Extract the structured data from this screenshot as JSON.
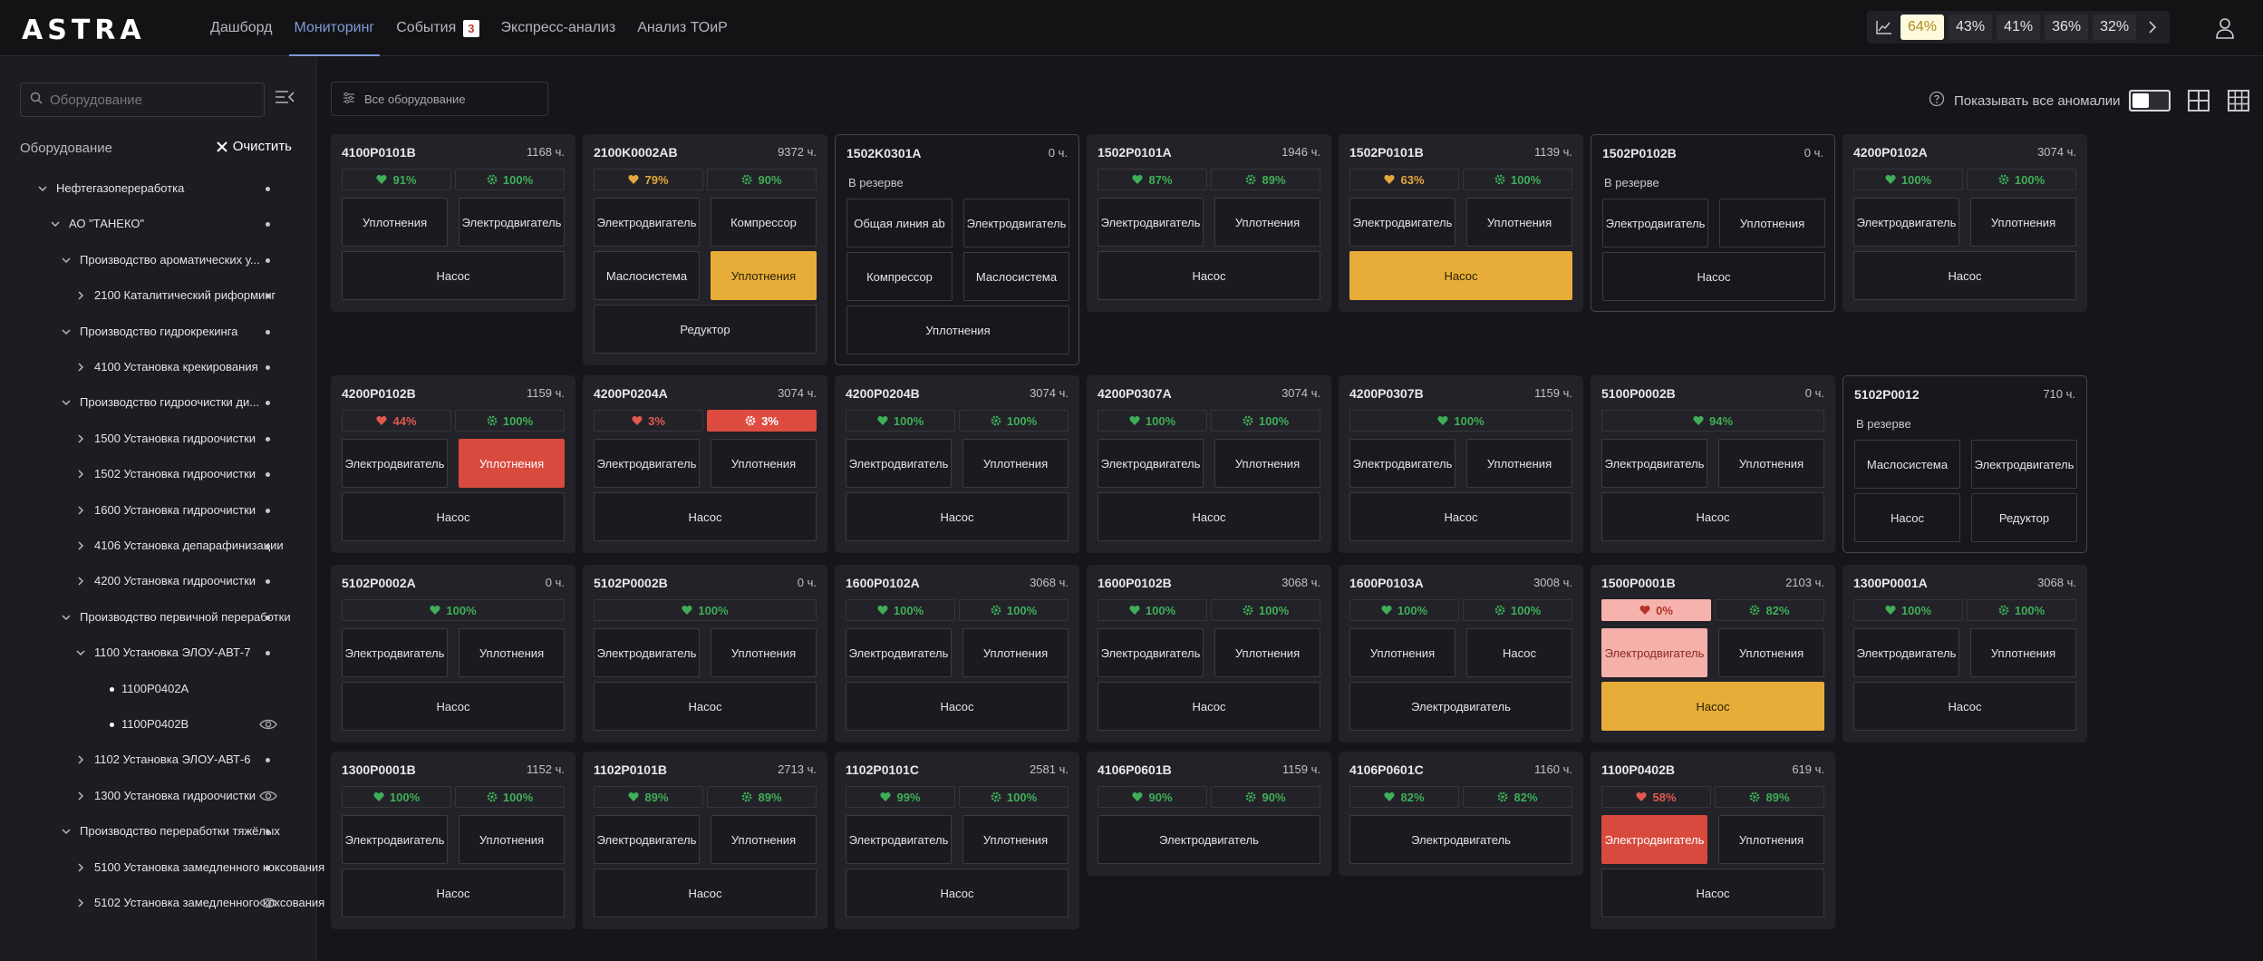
{
  "app": {
    "logo": "ASTRA"
  },
  "nav": {
    "tabs": [
      {
        "label": "Дашборд"
      },
      {
        "label": "Мониторинг"
      },
      {
        "label": "События",
        "badge": "3"
      },
      {
        "label": "Экспресс-анализ"
      },
      {
        "label": "Анализ ТОиР"
      }
    ],
    "percentages": [
      "64%",
      "43%",
      "41%",
      "36%",
      "32%"
    ],
    "active_percentage": "64%"
  },
  "sidebar": {
    "search_placeholder": "Оборудование",
    "title": "Оборудование",
    "clear_label": "Очистить",
    "tree": [
      {
        "label": "Нефтегазопереработка",
        "level": 0,
        "type": "open"
      },
      {
        "label": "АО \"ТАНЕКО\"",
        "level": 1,
        "type": "open"
      },
      {
        "label": "Производство ароматических у...",
        "level": 2,
        "type": "open"
      },
      {
        "label": "2100 Каталитический риформинг",
        "level": 3,
        "type": "closed"
      },
      {
        "label": "Производство гидрокрекинга",
        "level": 2,
        "type": "open"
      },
      {
        "label": "4100 Установка крекирования",
        "level": 3,
        "type": "closed"
      },
      {
        "label": "Производство гидроочистки ди...",
        "level": 2,
        "type": "open"
      },
      {
        "label": "1500 Установка гидроочистки",
        "level": 3,
        "type": "closed"
      },
      {
        "label": "1502 Установка гидроочистки",
        "level": 3,
        "type": "closed"
      },
      {
        "label": "1600 Установка гидроочистки",
        "level": 3,
        "type": "closed"
      },
      {
        "label": "4106 Установка депарафинизации",
        "level": 3,
        "type": "closed"
      },
      {
        "label": "4200 Установка гидроочистки",
        "level": 3,
        "type": "closed"
      },
      {
        "label": "Производство первичной переработки",
        "level": 2,
        "type": "open"
      },
      {
        "label": "1100 Установка ЭЛОУ-АВТ-7",
        "level": 3,
        "type": "open"
      },
      {
        "label": "1100P0402A",
        "level": 4,
        "type": "leaf"
      },
      {
        "label": "1100P0402B",
        "level": 4,
        "type": "leaf",
        "eye": true
      },
      {
        "label": "1102 Установка ЭЛОУ-АВТ-6",
        "level": 3,
        "type": "closed"
      },
      {
        "label": "1300 Установка гидроочистки",
        "level": 3,
        "type": "closed",
        "eye": true
      },
      {
        "label": "Производство переработки тяжёлых",
        "level": 2,
        "type": "open"
      },
      {
        "label": "5100 Установка замедленного коксования",
        "level": 3,
        "type": "closed"
      },
      {
        "label": "5102 Установка замедленного коксования",
        "level": 3,
        "type": "closed",
        "eye": true
      }
    ]
  },
  "toolbar": {
    "filter_label": "Все оборудование",
    "anomaly_label": "Показывать все аномалии",
    "anomaly_toggle": "off"
  },
  "colors": {
    "accent": "#7f9ad8",
    "ok": "#3fae57",
    "warn": "#e8ad38",
    "alarm": "#d84a3e",
    "alarm_light": "#f5b0aa"
  },
  "cards": [
    {
      "name": "4100P0101B",
      "hours": "1168 ч.",
      "health": [
        {
          "icon": "heart",
          "value": "91%",
          "tone": "green"
        },
        {
          "icon": "gear",
          "value": "100%",
          "tone": "green"
        }
      ],
      "rows": [
        [
          {
            "label": "Уплотнения"
          },
          {
            "label": "Электродвигатель"
          }
        ],
        [
          {
            "label": "Насос"
          }
        ]
      ]
    },
    {
      "name": "2100K0002AB",
      "hours": "9372 ч.",
      "health": [
        {
          "icon": "heart",
          "value": "79%",
          "tone": "orange"
        },
        {
          "icon": "gear",
          "value": "90%",
          "tone": "green"
        }
      ],
      "rows": [
        [
          {
            "label": "Электродвигатель"
          },
          {
            "label": "Компрессор"
          }
        ],
        [
          {
            "label": "Маслосистема"
          },
          {
            "label": "Уплотнения",
            "state": "orange"
          }
        ],
        [
          {
            "label": "Редуктор"
          }
        ]
      ]
    },
    {
      "name": "1502K0301A",
      "hours": "0 ч.",
      "status": "В резерве",
      "rows": [
        [
          {
            "label": "Общая линия ab"
          },
          {
            "label": "Электродвигатель"
          }
        ],
        [
          {
            "label": "Компрессор"
          },
          {
            "label": "Маслосистема"
          }
        ],
        [
          {
            "label": "Уплотнения"
          }
        ]
      ]
    },
    {
      "name": "1502P0101A",
      "hours": "1946 ч.",
      "health": [
        {
          "icon": "heart",
          "value": "87%",
          "tone": "green"
        },
        {
          "icon": "gear",
          "value": "89%",
          "tone": "green"
        }
      ],
      "rows": [
        [
          {
            "label": "Электродвигатель"
          },
          {
            "label": "Уплотнения"
          }
        ],
        [
          {
            "label": "Насос"
          }
        ]
      ]
    },
    {
      "name": "1502P0101B",
      "hours": "1139 ч.",
      "health": [
        {
          "icon": "heart",
          "value": "63%",
          "tone": "orange"
        },
        {
          "icon": "gear",
          "value": "100%",
          "tone": "green"
        }
      ],
      "rows": [
        [
          {
            "label": "Электродвигатель"
          },
          {
            "label": "Уплотнения"
          }
        ],
        [
          {
            "label": "Насос",
            "state": "orange"
          }
        ]
      ]
    },
    {
      "name": "1502P0102B",
      "hours": "0 ч.",
      "status": "В резерве",
      "rows": [
        [
          {
            "label": "Электродвигатель"
          },
          {
            "label": "Уплотнения"
          }
        ],
        [
          {
            "label": "Насос"
          }
        ]
      ]
    },
    {
      "name": "4200P0102A",
      "hours": "3074 ч.",
      "health": [
        {
          "icon": "heart",
          "value": "100%",
          "tone": "green"
        },
        {
          "icon": "gear",
          "value": "100%",
          "tone": "green"
        }
      ],
      "rows": [
        [
          {
            "label": "Электродвигатель"
          },
          {
            "label": "Уплотнения"
          }
        ],
        [
          {
            "label": "Насос"
          }
        ]
      ]
    },
    {
      "name": "4200P0102B",
      "hours": "1159 ч.",
      "health": [
        {
          "icon": "heart",
          "value": "44%",
          "tone": "red"
        },
        {
          "icon": "gear",
          "value": "100%",
          "tone": "green"
        }
      ],
      "rows": [
        [
          {
            "label": "Электродвигатель"
          },
          {
            "label": "Уплотнения",
            "state": "red"
          }
        ],
        [
          {
            "label": "Насос"
          }
        ]
      ]
    },
    {
      "name": "4200P0204A",
      "hours": "3074 ч.",
      "health": [
        {
          "icon": "heart",
          "value": "3%",
          "tone": "red"
        },
        {
          "icon": "gear",
          "value": "3%",
          "tone": "redfill"
        }
      ],
      "rows": [
        [
          {
            "label": "Электродвигатель"
          },
          {
            "label": "Уплотнения"
          }
        ],
        [
          {
            "label": "Насос"
          }
        ]
      ]
    },
    {
      "name": "4200P0204B",
      "hours": "3074 ч.",
      "health": [
        {
          "icon": "heart",
          "value": "100%",
          "tone": "green"
        },
        {
          "icon": "gear",
          "value": "100%",
          "tone": "green"
        }
      ],
      "rows": [
        [
          {
            "label": "Электродвигатель"
          },
          {
            "label": "Уплотнения"
          }
        ],
        [
          {
            "label": "Насос"
          }
        ]
      ]
    },
    {
      "name": "4200P0307A",
      "hours": "3074 ч.",
      "health": [
        {
          "icon": "heart",
          "value": "100%",
          "tone": "green"
        },
        {
          "icon": "gear",
          "value": "100%",
          "tone": "green"
        }
      ],
      "rows": [
        [
          {
            "label": "Электродвигатель"
          },
          {
            "label": "Уплотнения"
          }
        ],
        [
          {
            "label": "Насос"
          }
        ]
      ]
    },
    {
      "name": "4200P0307B",
      "hours": "1159 ч.",
      "health": [
        {
          "icon": "heart",
          "value": "100%",
          "tone": "green"
        }
      ],
      "rows": [
        [
          {
            "label": "Электродвигатель"
          },
          {
            "label": "Уплотнения"
          }
        ],
        [
          {
            "label": "Насос"
          }
        ]
      ]
    },
    {
      "name": "5100P0002B",
      "hours": "0 ч.",
      "health": [
        {
          "icon": "heart",
          "value": "94%",
          "tone": "green"
        }
      ],
      "rows": [
        [
          {
            "label": "Электродвигатель"
          },
          {
            "label": "Уплотнения"
          }
        ],
        [
          {
            "label": "Насос"
          }
        ]
      ]
    },
    {
      "name": "5102P0012",
      "hours": "710 ч.",
      "status": "В резерве",
      "rows": [
        [
          {
            "label": "Маслосистема"
          },
          {
            "label": "Электродвигатель"
          }
        ],
        [
          {
            "label": "Насос"
          },
          {
            "label": "Редуктор"
          }
        ]
      ]
    },
    {
      "name": "5102P0002A",
      "hours": "0 ч.",
      "health": [
        {
          "icon": "heart",
          "value": "100%",
          "tone": "green"
        }
      ],
      "rows": [
        [
          {
            "label": "Электродвигатель"
          },
          {
            "label": "Уплотнения"
          }
        ],
        [
          {
            "label": "Насос"
          }
        ]
      ]
    },
    {
      "name": "5102P0002B",
      "hours": "0 ч.",
      "health": [
        {
          "icon": "heart",
          "value": "100%",
          "tone": "green"
        }
      ],
      "rows": [
        [
          {
            "label": "Электродвигатель"
          },
          {
            "label": "Уплотнения"
          }
        ],
        [
          {
            "label": "Насос"
          }
        ]
      ]
    },
    {
      "name": "1600P0102A",
      "hours": "3068 ч.",
      "health": [
        {
          "icon": "heart",
          "value": "100%",
          "tone": "green"
        },
        {
          "icon": "gear",
          "value": "100%",
          "tone": "green"
        }
      ],
      "rows": [
        [
          {
            "label": "Электродвигатель"
          },
          {
            "label": "Уплотнения"
          }
        ],
        [
          {
            "label": "Насос"
          }
        ]
      ]
    },
    {
      "name": "1600P0102B",
      "hours": "3068 ч.",
      "health": [
        {
          "icon": "heart",
          "value": "100%",
          "tone": "green"
        },
        {
          "icon": "gear",
          "value": "100%",
          "tone": "green"
        }
      ],
      "rows": [
        [
          {
            "label": "Электродвигатель"
          },
          {
            "label": "Уплотнения"
          }
        ],
        [
          {
            "label": "Насос"
          }
        ]
      ]
    },
    {
      "name": "1600P0103A",
      "hours": "3008 ч.",
      "health": [
        {
          "icon": "heart",
          "value": "100%",
          "tone": "green"
        },
        {
          "icon": "gear",
          "value": "100%",
          "tone": "green"
        }
      ],
      "rows": [
        [
          {
            "label": "Уплотнения"
          },
          {
            "label": "Насос"
          }
        ],
        [
          {
            "label": "Электродвигатель"
          }
        ]
      ]
    },
    {
      "name": "1500P0001B",
      "hours": "2103 ч.",
      "health": [
        {
          "icon": "heart",
          "value": "0%",
          "tone": "pinkfill"
        },
        {
          "icon": "gear",
          "value": "82%",
          "tone": "green"
        }
      ],
      "rows": [
        [
          {
            "label": "Электродвигатель",
            "state": "pink"
          },
          {
            "label": "Уплотнения"
          }
        ],
        [
          {
            "label": "Насос",
            "state": "orange"
          }
        ]
      ]
    },
    {
      "name": "1300P0001A",
      "hours": "3068 ч.",
      "health": [
        {
          "icon": "heart",
          "value": "100%",
          "tone": "green"
        },
        {
          "icon": "gear",
          "value": "100%",
          "tone": "green"
        }
      ],
      "rows": [
        [
          {
            "label": "Электродвигатель"
          },
          {
            "label": "Уплотнения"
          }
        ],
        [
          {
            "label": "Насос"
          }
        ]
      ]
    },
    {
      "name": "1300P0001B",
      "hours": "1152 ч.",
      "health": [
        {
          "icon": "heart",
          "value": "100%",
          "tone": "green"
        },
        {
          "icon": "gear",
          "value": "100%",
          "tone": "green"
        }
      ],
      "rows": [
        [
          {
            "label": "Электродвигатель"
          },
          {
            "label": "Уплотнения"
          }
        ],
        [
          {
            "label": "Насос"
          }
        ]
      ]
    },
    {
      "name": "1102P0101B",
      "hours": "2713 ч.",
      "health": [
        {
          "icon": "heart",
          "value": "89%",
          "tone": "green"
        },
        {
          "icon": "gear",
          "value": "89%",
          "tone": "green"
        }
      ],
      "rows": [
        [
          {
            "label": "Электродвигатель"
          },
          {
            "label": "Уплотнения"
          }
        ],
        [
          {
            "label": "Насос"
          }
        ]
      ]
    },
    {
      "name": "1102P0101C",
      "hours": "2581 ч.",
      "health": [
        {
          "icon": "heart",
          "value": "99%",
          "tone": "green"
        },
        {
          "icon": "gear",
          "value": "100%",
          "tone": "green"
        }
      ],
      "rows": [
        [
          {
            "label": "Электродвигатель"
          },
          {
            "label": "Уплотнения"
          }
        ],
        [
          {
            "label": "Насос"
          }
        ]
      ]
    },
    {
      "name": "4106P0601B",
      "hours": "1159 ч.",
      "health": [
        {
          "icon": "heart",
          "value": "90%",
          "tone": "green"
        },
        {
          "icon": "gear",
          "value": "90%",
          "tone": "green"
        }
      ],
      "rows": [
        [
          {
            "label": "Электродвигатель"
          }
        ]
      ]
    },
    {
      "name": "4106P0601C",
      "hours": "1160 ч.",
      "health": [
        {
          "icon": "heart",
          "value": "82%",
          "tone": "green"
        },
        {
          "icon": "gear",
          "value": "82%",
          "tone": "green"
        }
      ],
      "rows": [
        [
          {
            "label": "Электродвигатель"
          }
        ]
      ]
    },
    {
      "name": "1100P0402B",
      "hours": "619 ч.",
      "health": [
        {
          "icon": "heart",
          "value": "58%",
          "tone": "red"
        },
        {
          "icon": "gear",
          "value": "89%",
          "tone": "green"
        }
      ],
      "rows": [
        [
          {
            "label": "Электродвигатель",
            "state": "red"
          },
          {
            "label": "Уплотнения"
          }
        ],
        [
          {
            "label": "Насос"
          }
        ]
      ]
    }
  ]
}
